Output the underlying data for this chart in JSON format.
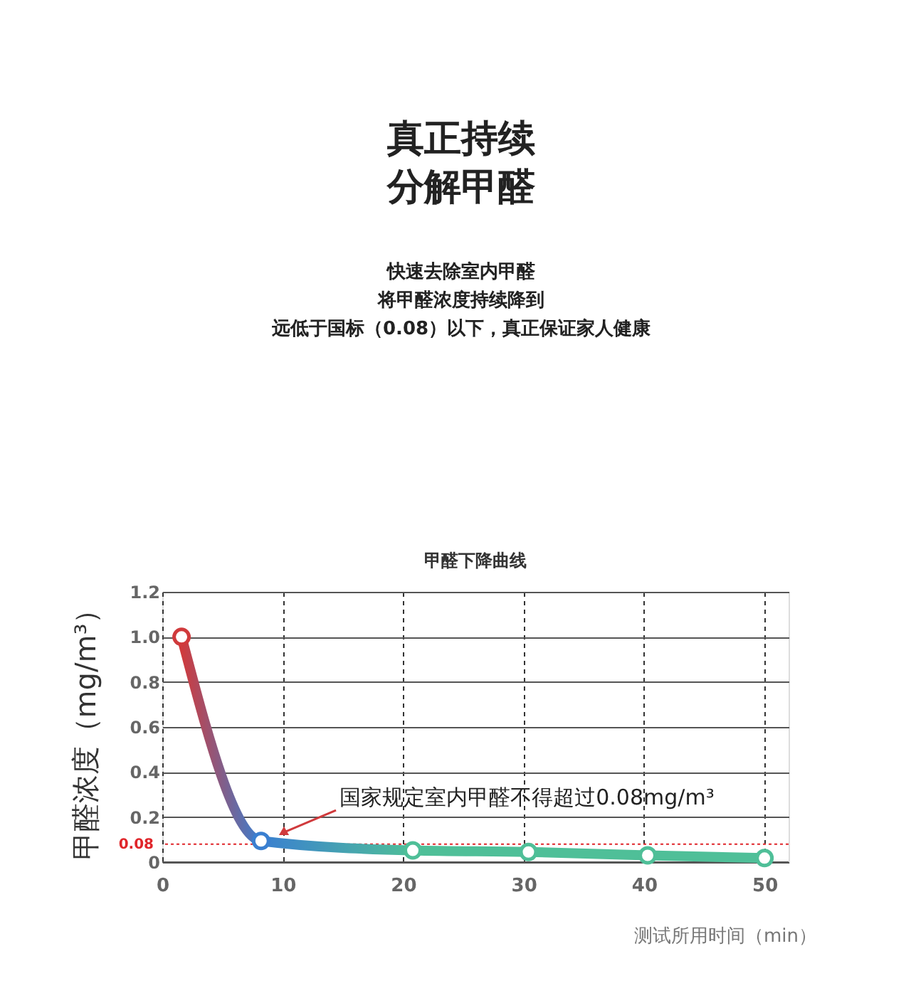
{
  "chart_data": {
    "type": "line",
    "title": "真正持续分解甲醛",
    "annotations": [
      "快速去除室内甲醛",
      "将甲醛浓度持续降到",
      "远低于国标（0.08）以下，真正保证家人健康",
      "甲醛下降曲线",
      {
        "text": "国家规定室内甲醛不得超过0.08mg/m³",
        "x": 10,
        "y": 0.13
      }
    ],
    "xlabel": "测试所用时间（min）",
    "ylabel": "甲醛浓度（mg/m³）",
    "series": [
      {
        "colors": [
          "#d03a3c",
          "#3a7fd0",
          "#4fbf98",
          "#4fbf98",
          "#4fbf98",
          "#4fbf98"
        ],
        "x": [
          1.6,
          8.2,
          20.8,
          30.4,
          40.3,
          50
        ],
        "values": [
          1.0,
          0.094,
          0.052,
          0.045,
          0.03,
          0.018
        ]
      }
    ],
    "xlim": [
      0,
      52
    ],
    "xticks": [
      0,
      10,
      20,
      30,
      40,
      50
    ],
    "ylim": [
      0,
      1.2
    ],
    "yticks": [
      0,
      0.2,
      0.4,
      0.6,
      0.8,
      {
        "value": 1,
        "label": "1.0"
      },
      1.2
    ],
    "ref_lines": [
      {
        "axis": "y",
        "value": 0.08,
        "label": "0.08",
        "color": "#e0262b",
        "line_style": "dotted"
      }
    ],
    "grid": true,
    "marker": "circle",
    "line_style": "solid"
  }
}
